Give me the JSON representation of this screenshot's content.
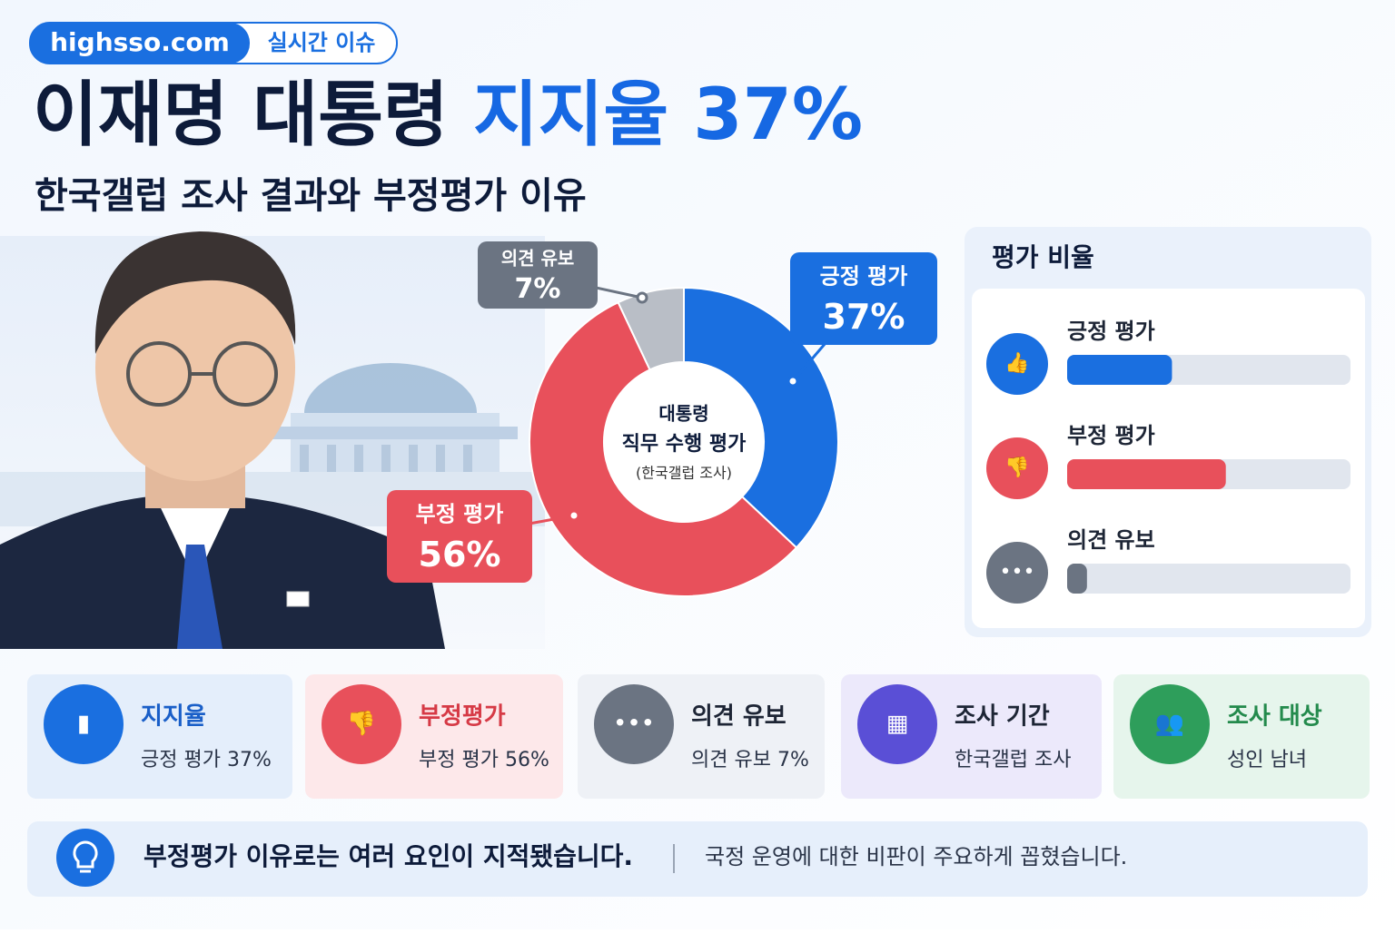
{
  "header": {
    "site": "highsso.com",
    "tag": "실시간 이슈",
    "title_main": "이재명 대통령",
    "title_highlight": "지지율 37%",
    "subtitle": "한국갤럽 조사 결과와 부정평가 이유"
  },
  "chart_data": {
    "type": "pie",
    "donut": true,
    "center_lines": [
      "대통령",
      "직무 수행 평가",
      "(한국갤럽 조사)"
    ],
    "categories": [
      "긍정 평가",
      "부정 평가",
      "의견 유보"
    ],
    "values": [
      37,
      56,
      7
    ],
    "value_labels": [
      "37%",
      "56%",
      "7%"
    ],
    "colors": [
      "#1a6fe0",
      "#e8505b",
      "#b9bec6"
    ]
  },
  "panel": {
    "title": "평가 비율"
  },
  "cards": [
    {
      "title": "지지율",
      "text": "긍정 평가 37%"
    },
    {
      "title": "부정평가",
      "text": "부정 평가 56%"
    },
    {
      "title": "의견 유보",
      "text": "의견 유보 7%"
    },
    {
      "title": "조사 기간",
      "text": "한국갤럽 조사"
    },
    {
      "title": "조사 대상",
      "text": "성인 남녀"
    }
  ],
  "footer": {
    "headline": "부정평가 이유로는 여러 요인이 지적됐습니다.",
    "detail": "국정 운영에 대한 비판이 주요하게 꼽혔습니다."
  }
}
